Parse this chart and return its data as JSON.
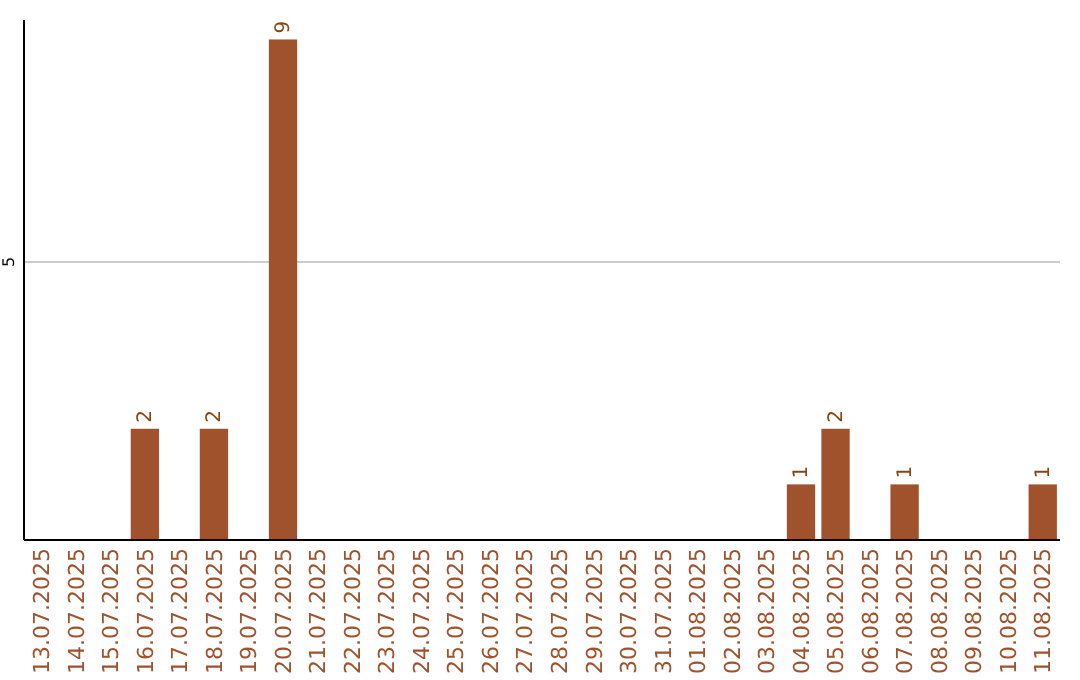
{
  "chart_data": {
    "type": "bar",
    "categories": [
      "13.07.2025",
      "14.07.2025",
      "15.07.2025",
      "16.07.2025",
      "17.07.2025",
      "18.07.2025",
      "19.07.2025",
      "20.07.2025",
      "21.07.2025",
      "22.07.2025",
      "23.07.2025",
      "24.07.2025",
      "25.07.2025",
      "26.07.2025",
      "27.07.2025",
      "28.07.2025",
      "29.07.2025",
      "30.07.2025",
      "31.07.2025",
      "01.08.2025",
      "02.08.2025",
      "03.08.2025",
      "04.08.2025",
      "05.08.2025",
      "06.08.2025",
      "07.08.2025",
      "08.08.2025",
      "09.08.2025",
      "10.08.2025",
      "11.08.2025"
    ],
    "values": [
      0,
      0,
      0,
      2,
      0,
      2,
      0,
      9,
      0,
      0,
      0,
      0,
      0,
      0,
      0,
      0,
      0,
      0,
      0,
      0,
      0,
      0,
      1,
      2,
      0,
      1,
      0,
      0,
      0,
      1
    ],
    "value_labels": [
      null,
      null,
      null,
      "2",
      null,
      "2",
      null,
      "9",
      null,
      null,
      null,
      null,
      null,
      null,
      null,
      null,
      null,
      null,
      null,
      null,
      null,
      null,
      "1",
      "2",
      null,
      "1",
      null,
      null,
      null,
      "1"
    ],
    "color": "#a0522d",
    "ylim": [
      0,
      9.35
    ],
    "yticks": [
      5
    ],
    "grid": "y"
  }
}
